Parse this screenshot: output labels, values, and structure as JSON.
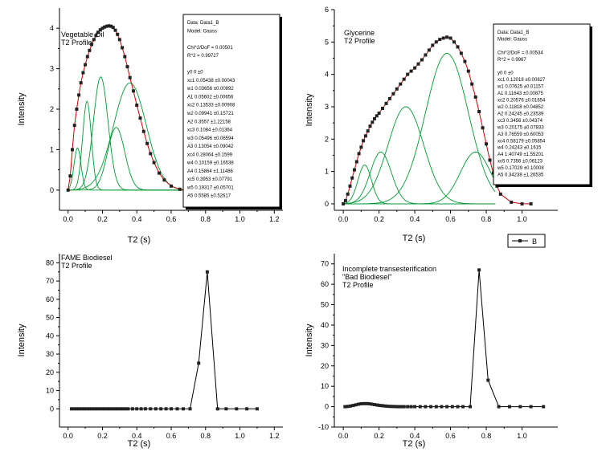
{
  "chart_data": [
    {
      "type": "line",
      "title": [
        "Vegetable Oil",
        "T2 Profile"
      ],
      "xlabel": "T2 (s)",
      "ylabel": "Intensity",
      "xlim": [
        -0.05,
        1.25
      ],
      "ylim": [
        -0.5,
        4.5
      ],
      "xticks": [
        0.0,
        0.2,
        0.4,
        0.6,
        0.8,
        1.0,
        1.2
      ],
      "yticks": [
        0,
        1,
        2,
        3,
        4
      ],
      "fit_color": "#cc0000",
      "component_color": "#009933",
      "fit_box": [
        "Data: Data1_B",
        "Model: Gauss",
        "",
        "Chi^2/DoF     = 0.00501",
        "R^2      =  0.99727",
        "",
        "y0      0         ±0",
        "xc1     0.05438   ±0.00043",
        "w1      0.03656   ±0.00892",
        "A1      0.05602   ±0.00656",
        "xc2     0.13533   ±0.00908",
        "w2      0.09941   ±0.15721",
        "A2      0.3557 ±1.22158",
        "xc3     0.1084 ±0.01364",
        "w3      0.05496   ±0.06594",
        "A3      0.13054 ±0.09042",
        "xc4     0.28064   ±0.1599",
        "w4      0.10159   ±0.16538",
        "A4      0.15864   ±1.11486",
        "xc5     0.3953 ±0.07791",
        "w5      0.19317   ±0.05701",
        "A5      0.5585 ±0.52617"
      ],
      "data_points": {
        "x": [
          0.0,
          0.0125,
          0.025,
          0.0375,
          0.05,
          0.0625,
          0.075,
          0.0875,
          0.1,
          0.1125,
          0.125,
          0.1375,
          0.15,
          0.1625,
          0.175,
          0.1875,
          0.2,
          0.2125,
          0.225,
          0.2375,
          0.25,
          0.2625,
          0.275,
          0.2875,
          0.3,
          0.315,
          0.33,
          0.345,
          0.36,
          0.38,
          0.4,
          0.42,
          0.44,
          0.46,
          0.48,
          0.5,
          0.53,
          0.56,
          0.6,
          0.65,
          0.7,
          0.75,
          0.8,
          0.84
        ],
        "y": [
          0.0,
          0.35,
          1.0,
          1.6,
          2.0,
          2.35,
          2.65,
          2.9,
          3.1,
          3.3,
          3.45,
          3.6,
          3.72,
          3.82,
          3.9,
          3.96,
          4.0,
          4.03,
          4.05,
          4.06,
          4.05,
          4.02,
          3.95,
          3.85,
          3.72,
          3.52,
          3.3,
          3.05,
          2.78,
          2.45,
          2.1,
          1.78,
          1.45,
          1.15,
          0.9,
          0.68,
          0.42,
          0.25,
          0.1,
          0.02,
          0.0,
          0.0,
          0.0,
          0.0
        ]
      },
      "components": [
        {
          "center": 0.055,
          "width": 0.04,
          "amp": 1.05
        },
        {
          "center": 0.11,
          "width": 0.05,
          "amp": 2.2
        },
        {
          "center": 0.19,
          "width": 0.085,
          "amp": 2.8
        },
        {
          "center": 0.28,
          "width": 0.1,
          "amp": 1.55
        },
        {
          "center": 0.36,
          "width": 0.19,
          "amp": 2.65
        }
      ]
    },
    {
      "type": "line",
      "title": [
        "Glycerine",
        "T2 Profile"
      ],
      "xlabel": "T2 (s)",
      "ylabel": "Intensity",
      "xlim": [
        -0.05,
        1.2
      ],
      "ylim": [
        -0.2,
        6
      ],
      "xticks": [
        0.0,
        0.2,
        0.4,
        0.6,
        0.8,
        1.0
      ],
      "yticks": [
        0,
        1,
        2,
        3,
        4,
        5,
        6
      ],
      "legend": "B",
      "legend_position": "bottom-right",
      "fit_box": [
        "Data: Data1_B",
        "Model: Gauss",
        "",
        "Chi^2/DoF     = 0.00534",
        "R^2      =  0.9967",
        "",
        "y0      0         ±0",
        "xc1     0.12018   ±0.00827",
        "w1      0.07625   ±0.01157",
        "A1      0.11643   ±0.00875",
        "xc2     0.20576   ±0.01654",
        "w2      0.11818   ±0.04852",
        "A2      0.24245   ±0.23539",
        "xc3     0.3456 ±0.04374",
        "w3      0.20175   ±0.07833",
        "A3      0.76559   ±0.60053",
        "xc4     0.58179   ±0.05854",
        "w4      0.24243   ±0.1615",
        "A4      1.40749   ±1.55201",
        "xc5     0.7356 ±0.06123",
        "w5      0.17029   ±0.10008",
        "A5      0.34238   ±1.26535"
      ],
      "data_points": {
        "x": [
          0.0,
          0.0125,
          0.025,
          0.0375,
          0.05,
          0.0625,
          0.075,
          0.0875,
          0.1,
          0.1125,
          0.125,
          0.1375,
          0.15,
          0.1625,
          0.175,
          0.1875,
          0.2,
          0.22,
          0.24,
          0.26,
          0.28,
          0.3,
          0.32,
          0.34,
          0.36,
          0.38,
          0.4,
          0.42,
          0.44,
          0.46,
          0.48,
          0.5,
          0.52,
          0.54,
          0.56,
          0.58,
          0.6,
          0.62,
          0.64,
          0.66,
          0.68,
          0.7,
          0.72,
          0.74,
          0.76,
          0.78,
          0.8,
          0.82,
          0.84,
          0.86,
          0.88,
          0.94,
          1.0,
          1.05
        ],
        "y": [
          0.0,
          0.1,
          0.3,
          0.55,
          0.8,
          1.05,
          1.3,
          1.55,
          1.75,
          1.95,
          2.1,
          2.25,
          2.4,
          2.52,
          2.63,
          2.72,
          2.8,
          2.95,
          3.1,
          3.25,
          3.4,
          3.55,
          3.7,
          3.85,
          4.0,
          4.1,
          4.2,
          4.32,
          4.45,
          4.6,
          4.75,
          4.9,
          5.0,
          5.08,
          5.12,
          5.15,
          5.12,
          5.0,
          4.85,
          4.65,
          4.4,
          4.1,
          3.7,
          3.3,
          2.85,
          2.35,
          1.85,
          1.35,
          0.95,
          0.55,
          0.3,
          0.05,
          0.0,
          0.0
        ]
      },
      "components": [
        {
          "center": 0.12,
          "width": 0.076,
          "amp": 1.2
        },
        {
          "center": 0.21,
          "width": 0.118,
          "amp": 1.6
        },
        {
          "center": 0.35,
          "width": 0.2,
          "amp": 3.0
        },
        {
          "center": 0.58,
          "width": 0.24,
          "amp": 4.65
        },
        {
          "center": 0.74,
          "width": 0.17,
          "amp": 1.6
        }
      ]
    },
    {
      "type": "line",
      "title": [
        "FAME Biodiesel",
        "T2 Profile"
      ],
      "xlabel": "T2 (s)",
      "ylabel": "Intensity",
      "xlim": [
        -0.05,
        1.25
      ],
      "ylim": [
        -10,
        85
      ],
      "xticks": [
        0.0,
        0.2,
        0.4,
        0.6,
        0.8,
        1.0,
        1.2
      ],
      "yticks": [
        0,
        10,
        20,
        30,
        40,
        50,
        60,
        70,
        80
      ],
      "series": [
        {
          "x": [
            0.02,
            0.035,
            0.05,
            0.065,
            0.08,
            0.095,
            0.11,
            0.125,
            0.14,
            0.155,
            0.17,
            0.185,
            0.2,
            0.215,
            0.23,
            0.245,
            0.26,
            0.275,
            0.29,
            0.305,
            0.32,
            0.335,
            0.35,
            0.375,
            0.4,
            0.425,
            0.45,
            0.48,
            0.51,
            0.54,
            0.57,
            0.6,
            0.635,
            0.67,
            0.71,
            0.76,
            0.81,
            0.87,
            0.92,
            0.98,
            1.04,
            1.1
          ],
          "y": [
            0,
            0,
            0,
            0,
            0,
            0,
            0,
            0,
            0,
            0,
            0,
            0,
            0,
            0,
            0,
            0,
            0,
            0,
            0,
            0,
            0,
            0,
            0,
            0,
            0,
            0,
            0,
            0,
            0,
            0,
            0,
            0,
            0,
            0,
            0,
            25,
            75,
            0,
            0,
            0,
            0,
            0
          ]
        }
      ]
    },
    {
      "type": "line",
      "title": [
        "Incomplete transesterification",
        "\"Bad Biodiesel\"",
        "T2 Profile"
      ],
      "xlabel": "T2 (s)",
      "ylabel": "Intensity",
      "xlim": [
        -0.05,
        1.2
      ],
      "ylim": [
        -10,
        75
      ],
      "xticks": [
        0.0,
        0.2,
        0.4,
        0.6,
        0.8,
        1.0
      ],
      "yticks": [
        -10,
        0,
        10,
        20,
        30,
        40,
        50,
        60,
        70
      ],
      "series": [
        {
          "x": [
            0.01,
            0.025,
            0.04,
            0.055,
            0.07,
            0.085,
            0.1,
            0.115,
            0.13,
            0.145,
            0.16,
            0.175,
            0.19,
            0.205,
            0.22,
            0.235,
            0.25,
            0.265,
            0.28,
            0.295,
            0.31,
            0.325,
            0.34,
            0.36,
            0.38,
            0.4,
            0.43,
            0.46,
            0.49,
            0.52,
            0.55,
            0.58,
            0.61,
            0.64,
            0.67,
            0.71,
            0.76,
            0.81,
            0.87,
            0.93,
            0.99,
            1.05,
            1.12
          ],
          "y": [
            0.0,
            0.1,
            0.3,
            0.6,
            0.9,
            1.2,
            1.4,
            1.5,
            1.5,
            1.4,
            1.2,
            1.0,
            0.8,
            0.6,
            0.45,
            0.3,
            0.2,
            0.12,
            0.06,
            0.03,
            0.0,
            0.0,
            0.0,
            0.0,
            0.0,
            0.0,
            0.0,
            0.0,
            0.0,
            0.0,
            0.0,
            0.0,
            0.0,
            0.0,
            0.0,
            0.0,
            67,
            13,
            0.0,
            0.0,
            0.0,
            0.0,
            0.0
          ]
        }
      ]
    }
  ]
}
